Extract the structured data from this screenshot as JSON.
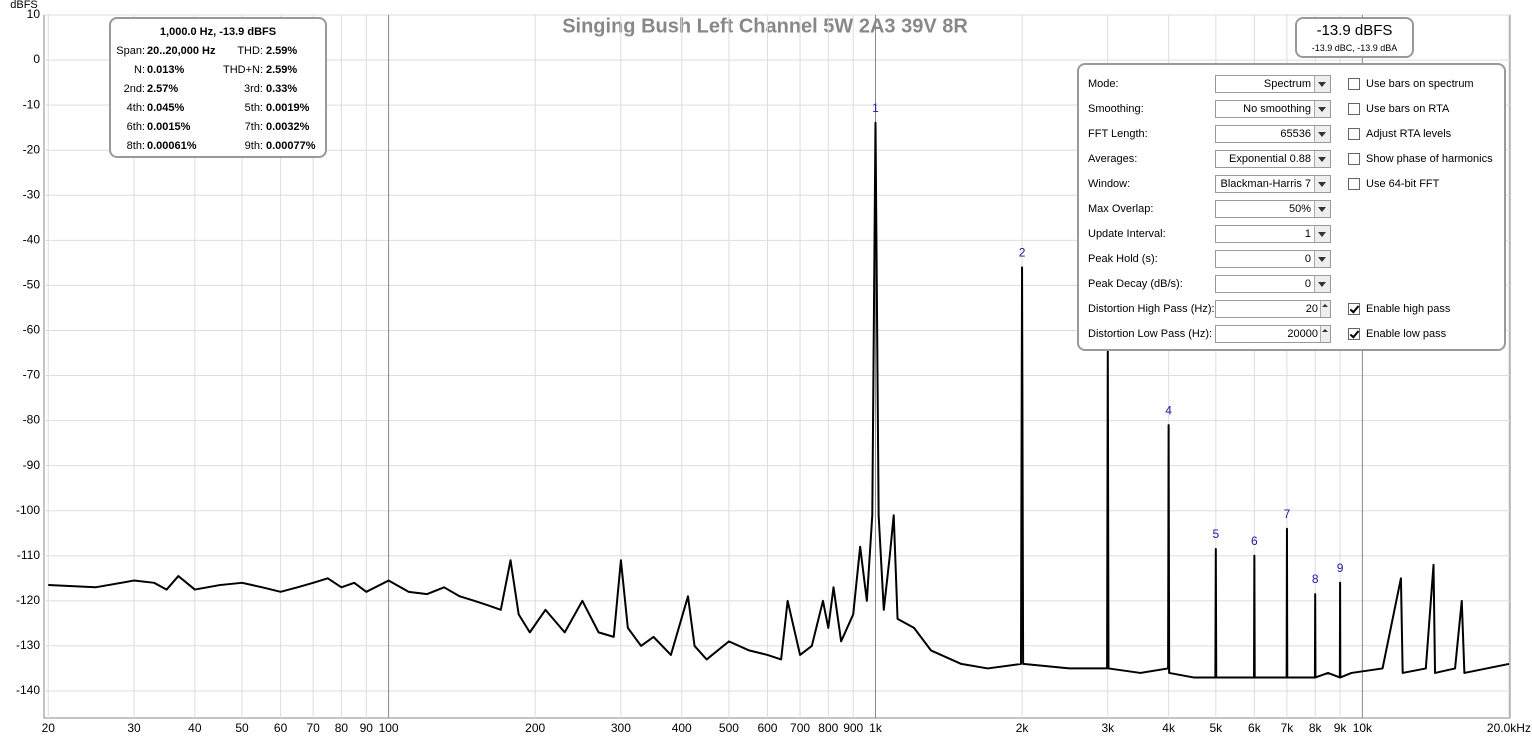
{
  "chart_data": {
    "type": "line",
    "title": "Singing Bush Left Channel 5W 2A3  39V 8R",
    "ylabel": "dBFS",
    "xscale": "log",
    "grid": true,
    "xlim": [
      19.6,
      20100
    ],
    "ylim": [
      -146,
      10
    ],
    "xticks": [
      20,
      30,
      40,
      50,
      60,
      70,
      80,
      90,
      100,
      200,
      300,
      400,
      500,
      600,
      700,
      800,
      900,
      {
        "value": 1000,
        "label": "1k"
      },
      {
        "value": 2000,
        "label": "2k"
      },
      {
        "value": 3000,
        "label": "3k"
      },
      {
        "value": 4000,
        "label": "4k"
      },
      {
        "value": 5000,
        "label": "5k"
      },
      {
        "value": 6000,
        "label": "6k"
      },
      {
        "value": 7000,
        "label": "7k"
      },
      {
        "value": 8000,
        "label": "8k"
      },
      {
        "value": 9000,
        "label": "9k"
      },
      {
        "value": 10000,
        "label": "10k"
      },
      {
        "value": 20000,
        "label": "20.0kHz"
      }
    ],
    "yticks": [
      10,
      0,
      -10,
      -20,
      -30,
      -40,
      -50,
      -60,
      -70,
      -80,
      -90,
      -100,
      -110,
      -120,
      -130,
      -140
    ],
    "series": [
      {
        "name": "Left",
        "color": "#000000",
        "x": [
          20,
          25,
          30,
          33,
          35,
          37,
          40,
          45,
          50,
          55,
          60,
          65,
          70,
          75,
          80,
          85,
          90,
          100,
          110,
          120,
          130,
          140,
          150,
          160,
          170,
          178,
          185,
          195,
          210,
          230,
          250,
          270,
          290,
          300,
          310,
          330,
          350,
          380,
          412,
          425,
          450,
          500,
          550,
          600,
          640,
          660,
          700,
          740,
          780,
          800,
          820,
          850,
          900,
          930,
          960,
          985,
          1000,
          1015,
          1040,
          1070,
          1090,
          1110,
          1200,
          1300,
          1500,
          1700,
          1990,
          2000,
          2010,
          2500,
          2990,
          3000,
          3010,
          3500,
          3990,
          4000,
          4010,
          4500,
          4990,
          5000,
          5010,
          5500,
          5990,
          6000,
          6010,
          6500,
          6990,
          7000,
          7010,
          7500,
          7990,
          8000,
          8010,
          8500,
          8990,
          9000,
          9010,
          9500,
          11000,
          12000,
          12100,
          13500,
          14000,
          14100,
          15500,
          16000,
          16200,
          18000,
          20000
        ],
        "values": [
          -116.5,
          -117,
          -115.5,
          -116,
          -117.5,
          -114.5,
          -117.5,
          -116.5,
          -116,
          -117,
          -118,
          -117,
          -116,
          -115,
          -117,
          -116,
          -118,
          -115.5,
          -118,
          -118.5,
          -117,
          -119,
          -120,
          -121,
          -122,
          -111,
          -123,
          -127,
          -122,
          -127,
          -120,
          -127,
          -128,
          -111,
          -126,
          -130,
          -128,
          -132,
          -119,
          -130,
          -133,
          -129,
          -131,
          -132,
          -133,
          -120,
          -132,
          -130,
          -120,
          -126,
          -117,
          -129,
          -123,
          -108,
          -120,
          -101,
          -13.9,
          -101,
          -122,
          -110,
          -101,
          -124,
          -126,
          -131,
          -134,
          -135,
          -134,
          -46,
          -134,
          -135,
          -135,
          -64,
          -135,
          -136,
          -135,
          -81,
          -136,
          -137,
          -137,
          -108.5,
          -137,
          -137,
          -137,
          -110,
          -137,
          -137,
          -137,
          -104,
          -137,
          -137,
          -137,
          -118.5,
          -137,
          -136,
          -137,
          -116,
          -137,
          -136,
          -135,
          -115,
          -136,
          -135,
          -112,
          -136,
          -135,
          -120,
          -136,
          -135,
          -134
        ]
      }
    ],
    "annotations": [
      {
        "text": "1",
        "x": 1000
      },
      {
        "text": "2",
        "x": 2000
      },
      {
        "text": "4",
        "x": 4000
      },
      {
        "text": "5",
        "x": 5000
      },
      {
        "text": "6",
        "x": 6000
      },
      {
        "text": "7",
        "x": 7000
      },
      {
        "text": "8",
        "x": 8000
      },
      {
        "text": "9",
        "x": 9000
      }
    ]
  },
  "info_box": {
    "title": "1,000.0 Hz, -13.9 dBFS",
    "rows": [
      [
        [
          "Span:",
          "20..20,000 Hz"
        ],
        [
          "THD:",
          "2.59%"
        ]
      ],
      [
        [
          "N:",
          "0.013%"
        ],
        [
          "THD+N:",
          "2.59%"
        ]
      ],
      [
        [
          "2nd:",
          "2.57%"
        ],
        [
          "3rd:",
          "0.33%"
        ]
      ],
      [
        [
          "4th:",
          "0.045%"
        ],
        [
          "5th:",
          "0.0019%"
        ]
      ],
      [
        [
          "6th:",
          "0.0015%"
        ],
        [
          "7th:",
          "0.0032%"
        ]
      ],
      [
        [
          "8th:",
          "0.00061%"
        ],
        [
          "9th:",
          "0.00077%"
        ]
      ]
    ]
  },
  "level_box": {
    "main": "-13.9 dBFS",
    "sub": "-13.9 dBC, -13.9 dBA"
  },
  "settings": {
    "rows": [
      {
        "label": "Mode:",
        "value": "Spectrum"
      },
      {
        "label": "Smoothing:",
        "value": "No  smoothing"
      },
      {
        "label": "FFT Length:",
        "value": "65536"
      },
      {
        "label": "Averages:",
        "value": "Exponential 0.88"
      },
      {
        "label": "Window:",
        "value": "Blackman-Harris 7"
      },
      {
        "label": "Max Overlap:",
        "value": "50%"
      },
      {
        "label": "Update Interval:",
        "value": "1"
      },
      {
        "label": "Peak Hold (s):",
        "value": "0"
      },
      {
        "label": "Peak Decay (dB/s):",
        "value": "0"
      },
      {
        "label": "Distortion High Pass (Hz):",
        "value": "20",
        "spin": true
      },
      {
        "label": "Distortion Low Pass (Hz):",
        "value": "20000",
        "spin": true
      }
    ],
    "checks": [
      {
        "label": "Use bars on spectrum",
        "checked": false
      },
      {
        "label": "Use bars on RTA",
        "checked": false
      },
      {
        "label": "Adjust RTA levels",
        "checked": false
      },
      {
        "label": "Show phase of harmonics",
        "checked": false
      },
      {
        "label": "Use 64-bit FFT",
        "checked": false
      },
      {
        "label": "Enable high pass",
        "checked": true
      },
      {
        "label": "Enable low pass",
        "checked": true
      }
    ]
  }
}
